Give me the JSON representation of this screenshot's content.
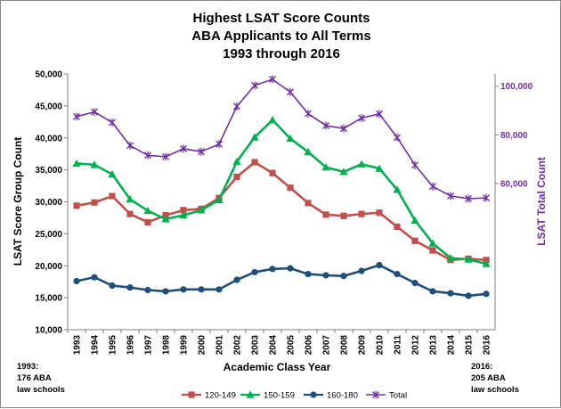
{
  "chart_data": {
    "type": "line",
    "title_lines": [
      "Highest LSAT Score Counts",
      "ABA Applicants to All Terms",
      "1993 through 2016"
    ],
    "xlabel": "Academic Class Year",
    "ylabel": "LSAT Score Group Count",
    "ylabel_right": "LSAT Total Count",
    "x": [
      "1993",
      "1994",
      "1995",
      "1996",
      "1997",
      "1998",
      "1999",
      "2000",
      "2001",
      "2002",
      "2003",
      "2004",
      "2005",
      "2006",
      "2007",
      "2008",
      "2009",
      "2010",
      "2011",
      "2012",
      "2013",
      "2014",
      "2015",
      "2016"
    ],
    "ylim": [
      10000,
      50000
    ],
    "yticks": [
      10000,
      15000,
      20000,
      25000,
      30000,
      35000,
      40000,
      45000,
      50000
    ],
    "ytick_labels": [
      "10,000",
      "15,000",
      "20,000",
      "25,000",
      "30,000",
      "35,000",
      "40,000",
      "45,000",
      "50,000"
    ],
    "ylim_right": [
      0,
      105000
    ],
    "yticks_right": [
      60000,
      80000,
      100000
    ],
    "ytick_labels_right": [
      "60,000",
      "80,000",
      "100,000"
    ],
    "series": [
      {
        "name": "120-149",
        "axis": "left",
        "color": "#c0504d",
        "marker": "square",
        "values": [
          29400,
          29900,
          30900,
          28100,
          26800,
          27900,
          28700,
          28900,
          30600,
          33900,
          36200,
          34500,
          32200,
          29800,
          28000,
          27800,
          28100,
          28300,
          26100,
          23900,
          22400,
          20900,
          21100,
          20900
        ]
      },
      {
        "name": "150-159",
        "axis": "left",
        "color": "#00b050",
        "marker": "triangle",
        "values": [
          36000,
          35800,
          34300,
          30400,
          28600,
          27300,
          27900,
          28700,
          30300,
          36300,
          40100,
          42800,
          39900,
          37800,
          35400,
          34700,
          35900,
          35200,
          31900,
          27100,
          23500,
          21200,
          21000,
          20300
        ]
      },
      {
        "name": "160-180",
        "axis": "left",
        "color": "#1f4e79",
        "marker": "circle",
        "values": [
          17600,
          18200,
          16900,
          16600,
          16200,
          16000,
          16300,
          16300,
          16300,
          17800,
          19000,
          19500,
          19600,
          18700,
          18500,
          18400,
          19200,
          20100,
          18700,
          17300,
          16000,
          15700,
          15300,
          15600
        ]
      },
      {
        "name": "Total",
        "axis": "right",
        "color": "#7030a0",
        "marker": "x",
        "values": [
          87500,
          89400,
          85100,
          75600,
          71600,
          71000,
          74300,
          73100,
          76200,
          91700,
          100300,
          102800,
          97600,
          88700,
          83800,
          82600,
          86900,
          88600,
          78900,
          67600,
          58800,
          54900,
          53800,
          54100
        ]
      }
    ],
    "annotations": {
      "left": [
        "1993:",
        "176 ABA",
        "law schools"
      ],
      "right": [
        "2016:",
        "205 ABA",
        "law schools"
      ]
    },
    "legend_position": "bottom-center",
    "grid": false
  }
}
